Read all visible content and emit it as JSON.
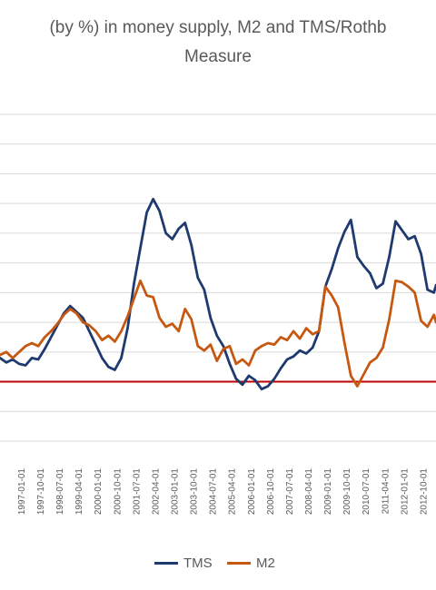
{
  "chart_data": {
    "type": "line",
    "title_line1": "(by %) in money supply, M2 and TMS/Rothb",
    "title_line2": "Measure",
    "x_tick_labels": [
      "1997-01-01",
      "1997-10-01",
      "1998-07-01",
      "1999-04-01",
      "2000-01-01",
      "2000-10-01",
      "2001-07-01",
      "2002-04-01",
      "2003-01-01",
      "2003-10-01",
      "2004-07-01",
      "2005-04-01",
      "2006-01-01",
      "2006-10-01",
      "2007-07-01",
      "2008-04-01",
      "2009-01-01",
      "2009-10-01",
      "2010-07-01",
      "2011-04-01",
      "2012-01-01",
      "2012-10-01"
    ],
    "xlim": [
      "1996-03",
      "2013-04"
    ],
    "ylim": [
      -4,
      18
    ],
    "grid": true,
    "zero_line_color": "#c00000",
    "legend_position": "bottom",
    "series": [
      {
        "name": "TMS",
        "color": "#1f3a6e",
        "points": [
          [
            "1996-03",
            1.6
          ],
          [
            "1996-06",
            1.3
          ],
          [
            "1996-09",
            1.5
          ],
          [
            "1996-12",
            1.2
          ],
          [
            "1997-03",
            1.1
          ],
          [
            "1997-06",
            1.6
          ],
          [
            "1997-09",
            1.5
          ],
          [
            "1997-12",
            2.2
          ],
          [
            "1998-03",
            3.0
          ],
          [
            "1998-06",
            3.8
          ],
          [
            "1998-09",
            4.6
          ],
          [
            "1998-12",
            5.1
          ],
          [
            "1999-03",
            4.7
          ],
          [
            "1999-06",
            4.3
          ],
          [
            "1999-09",
            3.4
          ],
          [
            "1999-12",
            2.5
          ],
          [
            "2000-03",
            1.6
          ],
          [
            "2000-06",
            1.0
          ],
          [
            "2000-09",
            0.8
          ],
          [
            "2000-12",
            1.6
          ],
          [
            "2001-03",
            3.6
          ],
          [
            "2001-06",
            6.6
          ],
          [
            "2001-09",
            9.0
          ],
          [
            "2001-12",
            11.4
          ],
          [
            "2002-03",
            12.3
          ],
          [
            "2002-06",
            11.5
          ],
          [
            "2002-09",
            10.0
          ],
          [
            "2002-12",
            9.6
          ],
          [
            "2003-03",
            10.3
          ],
          [
            "2003-06",
            10.7
          ],
          [
            "2003-09",
            9.2
          ],
          [
            "2003-12",
            7.0
          ],
          [
            "2004-03",
            6.2
          ],
          [
            "2004-06",
            4.3
          ],
          [
            "2004-09",
            3.1
          ],
          [
            "2004-12",
            2.4
          ],
          [
            "2005-03",
            1.2
          ],
          [
            "2005-06",
            0.2
          ],
          [
            "2005-09",
            -0.2
          ],
          [
            "2005-12",
            0.4
          ],
          [
            "2006-03",
            0.1
          ],
          [
            "2006-06",
            -0.5
          ],
          [
            "2006-09",
            -0.3
          ],
          [
            "2006-12",
            0.2
          ],
          [
            "2007-03",
            0.9
          ],
          [
            "2007-06",
            1.5
          ],
          [
            "2007-09",
            1.7
          ],
          [
            "2007-12",
            2.1
          ],
          [
            "2008-03",
            1.9
          ],
          [
            "2008-06",
            2.3
          ],
          [
            "2008-09",
            3.4
          ],
          [
            "2008-12",
            6.4
          ],
          [
            "2009-03",
            7.6
          ],
          [
            "2009-06",
            9.0
          ],
          [
            "2009-09",
            10.1
          ],
          [
            "2009-12",
            10.9
          ],
          [
            "2010-03",
            8.4
          ],
          [
            "2010-06",
            7.8
          ],
          [
            "2010-09",
            7.3
          ],
          [
            "2010-12",
            6.3
          ],
          [
            "2011-03",
            6.6
          ],
          [
            "2011-06",
            8.4
          ],
          [
            "2011-09",
            10.8
          ],
          [
            "2011-12",
            10.2
          ],
          [
            "2012-03",
            9.6
          ],
          [
            "2012-06",
            9.8
          ],
          [
            "2012-09",
            8.6
          ],
          [
            "2012-12",
            6.2
          ],
          [
            "2013-03",
            6.0
          ],
          [
            "2013-04",
            6.5
          ]
        ]
      },
      {
        "name": "M2",
        "color": "#c65911",
        "points": [
          [
            "1996-03",
            1.8
          ],
          [
            "1996-06",
            2.0
          ],
          [
            "1996-09",
            1.6
          ],
          [
            "1996-12",
            2.0
          ],
          [
            "1997-03",
            2.4
          ],
          [
            "1997-06",
            2.6
          ],
          [
            "1997-09",
            2.4
          ],
          [
            "1997-12",
            3.0
          ],
          [
            "1998-03",
            3.4
          ],
          [
            "1998-06",
            3.9
          ],
          [
            "1998-09",
            4.5
          ],
          [
            "1998-12",
            4.9
          ],
          [
            "1999-03",
            4.6
          ],
          [
            "1999-06",
            4.0
          ],
          [
            "1999-09",
            3.8
          ],
          [
            "1999-12",
            3.4
          ],
          [
            "2000-03",
            2.8
          ],
          [
            "2000-06",
            3.1
          ],
          [
            "2000-09",
            2.7
          ],
          [
            "2000-12",
            3.4
          ],
          [
            "2001-03",
            4.4
          ],
          [
            "2001-06",
            5.6
          ],
          [
            "2001-09",
            6.8
          ],
          [
            "2001-12",
            5.8
          ],
          [
            "2002-03",
            5.7
          ],
          [
            "2002-06",
            4.3
          ],
          [
            "2002-09",
            3.7
          ],
          [
            "2002-12",
            3.9
          ],
          [
            "2003-03",
            3.4
          ],
          [
            "2003-06",
            4.9
          ],
          [
            "2003-09",
            4.2
          ],
          [
            "2003-12",
            2.4
          ],
          [
            "2004-03",
            2.1
          ],
          [
            "2004-06",
            2.5
          ],
          [
            "2004-09",
            1.4
          ],
          [
            "2004-12",
            2.2
          ],
          [
            "2005-03",
            2.4
          ],
          [
            "2005-06",
            1.2
          ],
          [
            "2005-09",
            1.5
          ],
          [
            "2005-12",
            1.1
          ],
          [
            "2006-03",
            2.1
          ],
          [
            "2006-06",
            2.4
          ],
          [
            "2006-09",
            2.6
          ],
          [
            "2006-12",
            2.5
          ],
          [
            "2007-03",
            3.0
          ],
          [
            "2007-06",
            2.8
          ],
          [
            "2007-09",
            3.4
          ],
          [
            "2007-12",
            2.9
          ],
          [
            "2008-03",
            3.6
          ],
          [
            "2008-06",
            3.2
          ],
          [
            "2008-09",
            3.4
          ],
          [
            "2008-12",
            6.4
          ],
          [
            "2009-03",
            5.8
          ],
          [
            "2009-06",
            5.0
          ],
          [
            "2009-09",
            2.6
          ],
          [
            "2009-12",
            0.4
          ],
          [
            "2010-03",
            -0.3
          ],
          [
            "2010-06",
            0.5
          ],
          [
            "2010-09",
            1.3
          ],
          [
            "2010-12",
            1.6
          ],
          [
            "2011-03",
            2.3
          ],
          [
            "2011-06",
            4.2
          ],
          [
            "2011-09",
            6.8
          ],
          [
            "2011-12",
            6.7
          ],
          [
            "2012-03",
            6.4
          ],
          [
            "2012-06",
            6.0
          ],
          [
            "2012-09",
            4.1
          ],
          [
            "2012-12",
            3.7
          ],
          [
            "2013-03",
            4.5
          ],
          [
            "2013-04",
            4.0
          ]
        ]
      }
    ]
  }
}
